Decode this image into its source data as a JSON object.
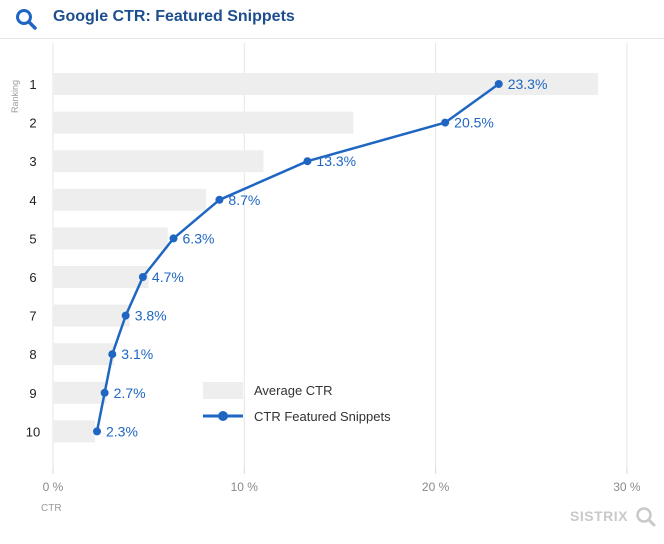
{
  "header": {
    "title": "Google CTR: Featured Snippets",
    "icon": "search-icon",
    "icon_color": "#1f66c3"
  },
  "branding": {
    "text": "SISTRIX"
  },
  "chart_data": {
    "type": "bar",
    "orientation": "horizontal",
    "title": "Google CTR: Featured Snippets",
    "ylabel": "Ranking",
    "xlabel": "CTR",
    "categories": [
      "1",
      "2",
      "3",
      "4",
      "5",
      "6",
      "7",
      "8",
      "9",
      "10"
    ],
    "xlim": [
      0,
      30
    ],
    "xticks": [
      0,
      10,
      20,
      30
    ],
    "xtick_labels": [
      "0 %",
      "10 %",
      "20 %",
      "30 %"
    ],
    "series": [
      {
        "name": "Average CTR",
        "type": "bar",
        "color": "#eeeeee",
        "values": [
          28.5,
          15.7,
          11.0,
          8.0,
          6.0,
          5.0,
          4.0,
          3.2,
          2.8,
          2.2
        ]
      },
      {
        "name": "CTR Featured Snippets",
        "type": "line",
        "color": "#1f66c3",
        "values": [
          23.3,
          20.5,
          13.3,
          8.7,
          6.3,
          4.7,
          3.8,
          3.1,
          2.7,
          2.3
        ],
        "labels": [
          "23.3%",
          "20.5%",
          "13.3%",
          "8.7%",
          "6.3%",
          "4.7%",
          "3.8%",
          "3.1%",
          "2.7%",
          "2.3%"
        ]
      }
    ],
    "legend": {
      "position": "bottom-center",
      "items": [
        "Average CTR",
        "CTR Featured Snippets"
      ]
    },
    "grid": {
      "vertical": true,
      "horizontal": false
    }
  }
}
